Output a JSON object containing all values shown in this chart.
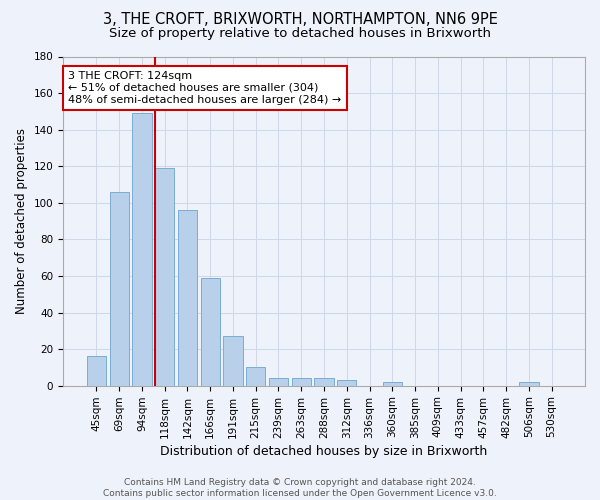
{
  "title_line1": "3, THE CROFT, BRIXWORTH, NORTHAMPTON, NN6 9PE",
  "title_line2": "Size of property relative to detached houses in Brixworth",
  "xlabel": "Distribution of detached houses by size in Brixworth",
  "ylabel": "Number of detached properties",
  "bar_color": "#b8d0ea",
  "bar_edge_color": "#7aadd4",
  "background_color": "#eef2fa",
  "grid_color": "#d0d8e8",
  "categories": [
    "45sqm",
    "69sqm",
    "94sqm",
    "118sqm",
    "142sqm",
    "166sqm",
    "191sqm",
    "215sqm",
    "239sqm",
    "263sqm",
    "288sqm",
    "312sqm",
    "336sqm",
    "360sqm",
    "385sqm",
    "409sqm",
    "433sqm",
    "457sqm",
    "482sqm",
    "506sqm",
    "530sqm"
  ],
  "values": [
    16,
    106,
    149,
    119,
    96,
    59,
    27,
    10,
    4,
    4,
    4,
    3,
    0,
    2,
    0,
    0,
    0,
    0,
    0,
    2,
    0
  ],
  "ylim": [
    0,
    180
  ],
  "yticks": [
    0,
    20,
    40,
    60,
    80,
    100,
    120,
    140,
    160,
    180
  ],
  "annotation_line1": "3 THE CROFT: 124sqm",
  "annotation_line2": "← 51% of detached houses are smaller (304)",
  "annotation_line3": "48% of semi-detached houses are larger (284) →",
  "annotation_box_color": "#ffffff",
  "annotation_box_edge_color": "#cc0000",
  "vline_color": "#cc0000",
  "vline_x_index": 3,
  "footer_text": "Contains HM Land Registry data © Crown copyright and database right 2024.\nContains public sector information licensed under the Open Government Licence v3.0.",
  "title_fontsize": 10.5,
  "subtitle_fontsize": 9.5,
  "xlabel_fontsize": 9,
  "ylabel_fontsize": 8.5,
  "tick_fontsize": 7.5,
  "annotation_fontsize": 8,
  "footer_fontsize": 6.5
}
